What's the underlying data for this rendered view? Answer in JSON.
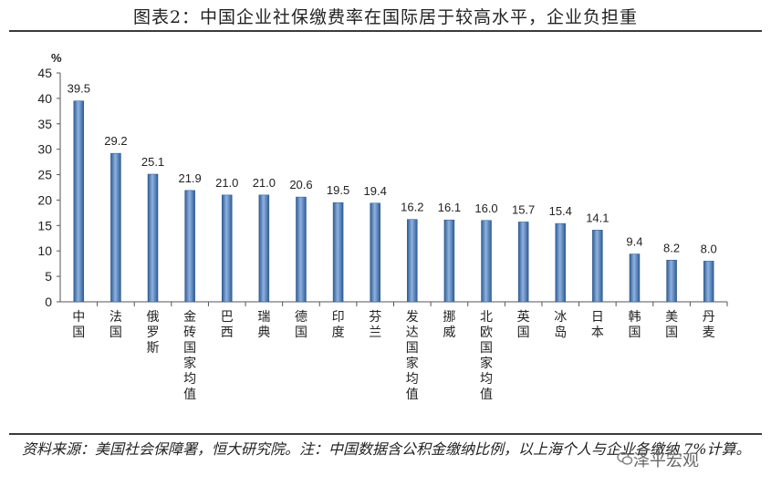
{
  "title": "图表2：中国企业社保缴费率在国际居于较高水平，企业负担重",
  "source_note": "资料来源：美国社会保障署，恒大研究院。注：中国数据含公积金缴纳比例，以上海个人与企业各缴纳 7%计算。",
  "watermark": "泽平宏观",
  "chart_data": {
    "type": "bar",
    "unit_label": "%",
    "categories": [
      "中国",
      "法国",
      "俄罗斯",
      "金砖国家均值",
      "巴西",
      "瑞典",
      "德国",
      "印度",
      "芬兰",
      "发达国家均值",
      "挪威",
      "北欧国家均值",
      "英国",
      "冰岛",
      "日本",
      "韩国",
      "美国",
      "丹麦"
    ],
    "values": [
      39.5,
      29.2,
      25.1,
      21.9,
      21.0,
      21.0,
      20.6,
      19.5,
      19.4,
      16.2,
      16.1,
      16.0,
      15.7,
      15.4,
      14.1,
      9.4,
      8.2,
      8.0
    ],
    "value_labels": [
      "39.5",
      "29.2",
      "25.1",
      "21.9",
      "21.0",
      "21.0",
      "20.6",
      "19.5",
      "19.4",
      "16.2",
      "16.1",
      "16.0",
      "15.7",
      "15.4",
      "14.1",
      "9.4",
      "8.2",
      "8.0"
    ],
    "ylim": [
      0,
      45
    ],
    "yticks": [
      "0",
      "5",
      "10",
      "15",
      "20",
      "25",
      "30",
      "35",
      "40",
      "45"
    ],
    "grid": false,
    "legend": "none",
    "bar_color": "#4a7ebb"
  }
}
